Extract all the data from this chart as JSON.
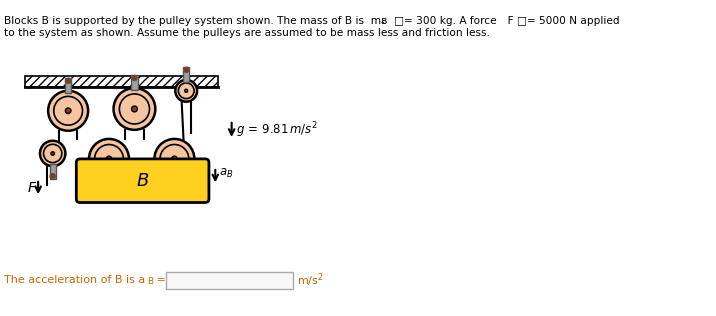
{
  "pulley_fill": "#F5C5A0",
  "pulley_edge": "#000000",
  "pulley_center": "#8B3A10",
  "bracket_fill": "#A0A0A0",
  "bracket_edge": "#555555",
  "block_fill": "#FFD020",
  "block_edge": "#000000",
  "rope_color": "#000000",
  "hatch_fill": "#ffffff",
  "hatch_edge": "#000000",
  "text_orange": "#CC6600",
  "text_black": "#000000",
  "bg_color": "#ffffff",
  "fig_width": 7.16,
  "fig_height": 3.16,
  "line1": "Blocks B is supported by the pulley system shown. The mass of B is  mᴃ  □= 300 kg. A force    F □= 5000 N applied",
  "line2": "to the system as shown. Assume the pulleys are assumed to be mass less and friction less.",
  "g_label": "g = 9.81 m/s",
  "block_label": "B",
  "bottom_text": "The acceleration of B is a",
  "bottom_units": "m/s"
}
